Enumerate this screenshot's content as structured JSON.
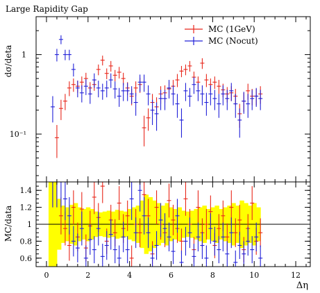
{
  "chart_data": [
    {
      "type": "scatter",
      "title": "Large Rapidity Gap",
      "ylabel": "dσ/deta",
      "xlabel": "",
      "yscale": "log",
      "ylim": [
        0.025,
        3.0
      ],
      "xlim": [
        -0.5,
        12.7
      ],
      "yticks": [
        {
          "v": 0.1,
          "label": "10⁻¹"
        },
        {
          "v": 1,
          "label": "1"
        }
      ],
      "legend_position": "top-right",
      "series": [
        {
          "name": "MC (1GeV)",
          "color": "#e8261a",
          "x": [
            0.5,
            0.7,
            0.9,
            1.1,
            1.3,
            1.5,
            1.7,
            1.9,
            2.1,
            2.3,
            2.5,
            2.7,
            2.9,
            3.1,
            3.3,
            3.5,
            3.7,
            3.9,
            4.1,
            4.3,
            4.5,
            4.7,
            4.9,
            5.1,
            5.3,
            5.5,
            5.7,
            5.9,
            6.1,
            6.3,
            6.5,
            6.7,
            6.9,
            7.1,
            7.3,
            7.5,
            7.7,
            7.9,
            8.1,
            8.3,
            8.5,
            8.7,
            8.9,
            9.1,
            9.3,
            9.5,
            9.7,
            9.9,
            10.1,
            10.3
          ],
          "y": [
            0.09,
            0.21,
            0.26,
            0.38,
            0.42,
            0.4,
            0.45,
            0.5,
            0.38,
            0.42,
            0.65,
            0.85,
            0.58,
            0.72,
            0.55,
            0.6,
            0.5,
            0.38,
            0.3,
            0.38,
            0.42,
            0.12,
            0.16,
            0.25,
            0.22,
            0.32,
            0.33,
            0.37,
            0.4,
            0.48,
            0.62,
            0.65,
            0.72,
            0.52,
            0.45,
            0.78,
            0.48,
            0.42,
            0.45,
            0.4,
            0.36,
            0.32,
            0.33,
            0.3,
            0.18,
            0.26,
            0.35,
            0.3,
            0.3,
            0.32
          ],
          "err": [
            0.04,
            0.06,
            0.06,
            0.08,
            0.08,
            0.07,
            0.08,
            0.09,
            0.07,
            0.07,
            0.1,
            0.12,
            0.09,
            0.11,
            0.09,
            0.1,
            0.09,
            0.07,
            0.07,
            0.08,
            0.09,
            0.05,
            0.05,
            0.07,
            0.07,
            0.08,
            0.08,
            0.08,
            0.08,
            0.09,
            0.1,
            0.1,
            0.11,
            0.09,
            0.08,
            0.12,
            0.09,
            0.08,
            0.08,
            0.08,
            0.07,
            0.07,
            0.07,
            0.07,
            0.06,
            0.07,
            0.08,
            0.07,
            0.07,
            0.08
          ]
        },
        {
          "name": "MC (Nocut)",
          "color": "#2020d8",
          "x": [
            0.3,
            0.5,
            0.7,
            0.9,
            1.1,
            1.3,
            1.5,
            1.7,
            1.9,
            2.1,
            2.3,
            2.5,
            2.7,
            2.9,
            3.1,
            3.3,
            3.5,
            3.7,
            3.9,
            4.1,
            4.3,
            4.5,
            4.7,
            4.9,
            5.1,
            5.3,
            5.5,
            5.7,
            5.9,
            6.1,
            6.3,
            6.5,
            6.7,
            6.9,
            7.1,
            7.3,
            7.5,
            7.7,
            7.9,
            8.1,
            8.3,
            8.5,
            8.7,
            8.9,
            9.1,
            9.3,
            9.5,
            9.7,
            9.9,
            10.1,
            10.3
          ],
          "y": [
            0.22,
            1.0,
            1.55,
            1.0,
            1.0,
            0.65,
            0.38,
            0.33,
            0.4,
            0.32,
            0.48,
            0.38,
            0.35,
            0.38,
            0.48,
            0.37,
            0.3,
            0.35,
            0.35,
            0.32,
            0.25,
            0.45,
            0.45,
            0.32,
            0.2,
            0.18,
            0.28,
            0.28,
            0.38,
            0.32,
            0.24,
            0.15,
            0.35,
            0.3,
            0.42,
            0.35,
            0.32,
            0.25,
            0.32,
            0.28,
            0.24,
            0.32,
            0.28,
            0.35,
            0.24,
            0.15,
            0.26,
            0.24,
            0.28,
            0.3,
            0.28
          ],
          "err": [
            0.08,
            0.18,
            0.2,
            0.15,
            0.15,
            0.12,
            0.09,
            0.08,
            0.09,
            0.08,
            0.1,
            0.09,
            0.08,
            0.09,
            0.1,
            0.09,
            0.08,
            0.09,
            0.09,
            0.08,
            0.08,
            0.11,
            0.11,
            0.09,
            0.07,
            0.07,
            0.08,
            0.08,
            0.1,
            0.09,
            0.08,
            0.06,
            0.09,
            0.08,
            0.1,
            0.09,
            0.09,
            0.08,
            0.09,
            0.08,
            0.08,
            0.09,
            0.08,
            0.09,
            0.08,
            0.06,
            0.08,
            0.08,
            0.08,
            0.08,
            0.08
          ]
        }
      ]
    },
    {
      "type": "scatter",
      "ylabel": "MC/data",
      "xlabel": "Δη",
      "ylim": [
        0.5,
        1.5
      ],
      "xlim": [
        -0.5,
        12.7
      ],
      "yticks": [
        0.6,
        0.8,
        1,
        1.2,
        1.4
      ],
      "xticks": [
        0,
        2,
        4,
        6,
        8,
        10,
        12
      ],
      "band_color": "#ffff00",
      "band": {
        "x": [
          0.2,
          0.4,
          0.6,
          0.8,
          1.0,
          1.2,
          1.4,
          1.6,
          1.8,
          2.0,
          2.2,
          2.4,
          2.6,
          2.8,
          3.0,
          3.2,
          3.4,
          3.6,
          3.8,
          4.0,
          4.2,
          4.4,
          4.6,
          4.8,
          5.0,
          5.2,
          5.4,
          5.6,
          5.8,
          6.0,
          6.2,
          6.4,
          6.6,
          6.8,
          7.0,
          7.2,
          7.4,
          7.6,
          7.8,
          8.0,
          8.2,
          8.4,
          8.6,
          8.8,
          9.0,
          9.2,
          9.4,
          9.6,
          9.8,
          10.0,
          10.2,
          10.4
        ],
        "half_width": [
          0.55,
          0.55,
          0.3,
          0.22,
          0.2,
          0.23,
          0.25,
          0.2,
          0.18,
          0.2,
          0.18,
          0.15,
          0.14,
          0.15,
          0.16,
          0.15,
          0.17,
          0.16,
          0.15,
          0.18,
          0.2,
          0.22,
          0.28,
          0.35,
          0.32,
          0.28,
          0.25,
          0.22,
          0.25,
          0.2,
          0.18,
          0.2,
          0.16,
          0.15,
          0.16,
          0.18,
          0.2,
          0.22,
          0.18,
          0.2,
          0.22,
          0.18,
          0.2,
          0.22,
          0.25,
          0.22,
          0.28,
          0.25,
          0.22,
          0.25,
          0.2,
          0.0
        ]
      },
      "series": [
        {
          "name": "MC (1GeV)",
          "color": "#e8261a",
          "x": [
            0.3,
            0.5,
            0.7,
            0.9,
            1.1,
            1.3,
            1.5,
            1.7,
            1.9,
            2.1,
            2.3,
            2.5,
            2.7,
            2.9,
            3.1,
            3.3,
            3.5,
            3.7,
            3.9,
            4.1,
            4.3,
            4.5,
            4.7,
            4.9,
            5.1,
            5.3,
            5.5,
            5.7,
            5.9,
            6.1,
            6.3,
            6.5,
            6.7,
            6.9,
            7.1,
            7.3,
            7.5,
            7.7,
            7.9,
            8.1,
            8.3,
            8.5,
            8.7,
            8.9,
            9.1,
            9.3,
            9.5,
            9.7,
            9.9,
            10.1,
            10.3
          ],
          "y": [
            1.5,
            1.5,
            1.1,
            0.95,
            0.75,
            1.2,
            0.85,
            1.18,
            0.72,
            0.98,
            1.32,
            1.08,
            1.45,
            0.8,
            1.05,
            0.9,
            1.25,
            0.95,
            1.1,
            0.6,
            1.0,
            0.9,
            1.35,
            1.1,
            0.65,
            1.2,
            1.0,
            0.9,
            1.28,
            1.05,
            0.95,
            0.8,
            1.3,
            1.0,
            0.7,
            1.2,
            0.9,
            1.0,
            1.15,
            0.75,
            0.95,
            1.1,
            0.85,
            1.2,
            0.9,
            1.05,
            0.7,
            0.95,
            1.25,
            0.8,
            0.9
          ],
          "err": [
            0.3,
            0.3,
            0.22,
            0.2,
            0.18,
            0.2,
            0.17,
            0.2,
            0.16,
            0.18,
            0.2,
            0.17,
            0.2,
            0.15,
            0.18,
            0.16,
            0.2,
            0.17,
            0.18,
            0.15,
            0.18,
            0.17,
            0.22,
            0.2,
            0.15,
            0.2,
            0.18,
            0.17,
            0.2,
            0.18,
            0.17,
            0.15,
            0.2,
            0.18,
            0.15,
            0.2,
            0.17,
            0.18,
            0.19,
            0.15,
            0.17,
            0.18,
            0.16,
            0.2,
            0.17,
            0.18,
            0.15,
            0.17,
            0.2,
            0.16,
            0.17
          ]
        },
        {
          "name": "MC (Nocut)",
          "color": "#2020d8",
          "x": [
            0.3,
            0.5,
            0.7,
            0.9,
            1.1,
            1.3,
            1.5,
            1.7,
            1.9,
            2.1,
            2.3,
            2.5,
            2.7,
            2.9,
            3.1,
            3.3,
            3.5,
            3.7,
            3.9,
            4.1,
            4.3,
            4.5,
            4.7,
            4.9,
            5.1,
            5.3,
            5.5,
            5.7,
            5.9,
            6.1,
            6.3,
            6.5,
            6.7,
            6.9,
            7.1,
            7.3,
            7.5,
            7.7,
            7.9,
            8.1,
            8.3,
            8.5,
            8.7,
            8.9,
            9.1,
            9.3,
            9.5,
            9.7,
            9.9,
            10.1,
            10.3
          ],
          "y": [
            1.5,
            1.5,
            1.5,
            1.3,
            1.1,
            0.8,
            0.72,
            0.95,
            0.6,
            0.82,
            0.7,
            0.95,
            0.62,
            0.75,
            0.88,
            0.7,
            0.6,
            0.85,
            0.7,
            1.3,
            0.9,
            1.4,
            1.1,
            0.9,
            0.6,
            0.75,
            1.05,
            0.95,
            0.85,
            0.68,
            1.1,
            0.55,
            0.8,
            0.9,
            0.62,
            0.85,
            0.75,
            0.6,
            0.95,
            0.8,
            0.7,
            0.85,
            0.65,
            0.9,
            0.55,
            0.75,
            0.65,
            0.8,
            0.7,
            0.85,
            0.6
          ],
          "err": [
            0.3,
            0.3,
            0.3,
            0.25,
            0.22,
            0.18,
            0.17,
            0.2,
            0.15,
            0.18,
            0.16,
            0.2,
            0.15,
            0.17,
            0.18,
            0.16,
            0.15,
            0.18,
            0.16,
            0.25,
            0.18,
            0.25,
            0.22,
            0.18,
            0.15,
            0.17,
            0.2,
            0.18,
            0.17,
            0.15,
            0.2,
            0.14,
            0.17,
            0.18,
            0.15,
            0.17,
            0.16,
            0.15,
            0.18,
            0.17,
            0.16,
            0.17,
            0.15,
            0.18,
            0.14,
            0.16,
            0.15,
            0.17,
            0.16,
            0.17,
            0.15
          ]
        }
      ]
    }
  ]
}
